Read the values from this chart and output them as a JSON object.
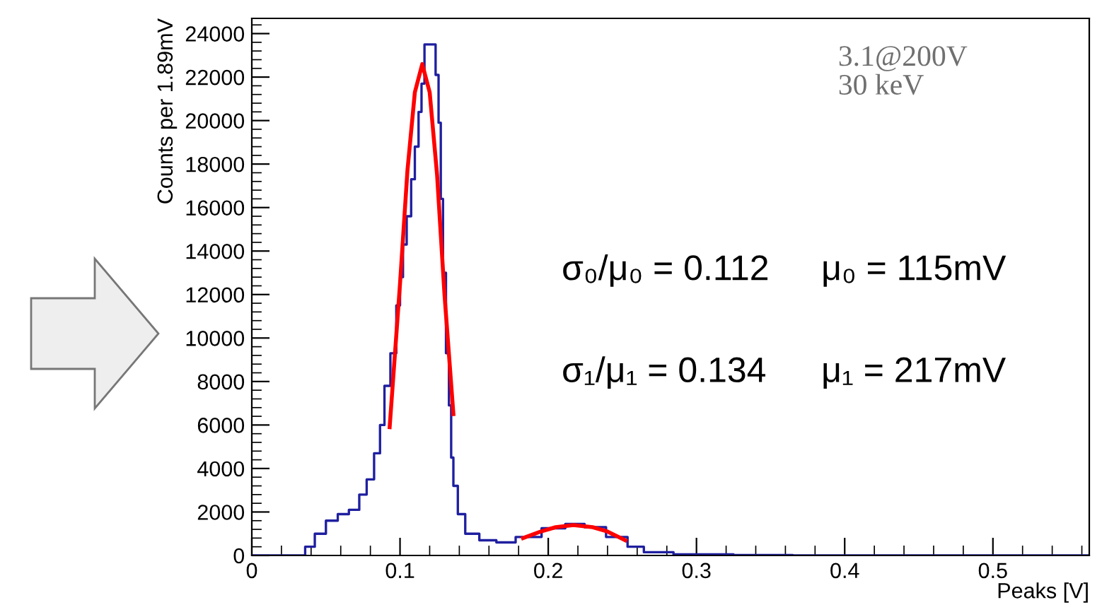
{
  "chart_data": {
    "type": "step",
    "xlabel": "Peaks [V]",
    "ylabel": "Counts per 1.89mV",
    "xlim": [
      0,
      0.565
    ],
    "ylim": [
      0,
      24700
    ],
    "xticks": [
      0,
      0.1,
      0.2,
      0.3,
      0.4,
      0.5
    ],
    "yticks": [
      0,
      2000,
      4000,
      6000,
      8000,
      10000,
      12000,
      14000,
      16000,
      18000,
      20000,
      22000,
      24000
    ],
    "grid": false,
    "legend": false,
    "series": [
      {
        "color": "#1f1fa0",
        "x": [
          0,
          0.032,
          0.04,
          0.045,
          0.055,
          0.061,
          0.07,
          0.075,
          0.08,
          0.085,
          0.088,
          0.091,
          0.096,
          0.099,
          0.101,
          0.103,
          0.106,
          0.109,
          0.111,
          0.114,
          0.115,
          0.118,
          0.123,
          0.125,
          0.127,
          0.128,
          0.13,
          0.132,
          0.134,
          0.135,
          0.137,
          0.141,
          0.147,
          0.16,
          0.17,
          0.186,
          0.205,
          0.218,
          0.231,
          0.247,
          0.26,
          0.269,
          0.3,
          0.35,
          0.38,
          0.565
        ],
        "values": [
          0,
          0,
          400,
          1000,
          1600,
          1900,
          2100,
          2800,
          3500,
          4700,
          6000,
          7800,
          9300,
          11500,
          12800,
          14300,
          15600,
          17300,
          18800,
          20400,
          21700,
          23500,
          23500,
          22100,
          19900,
          16400,
          13000,
          9300,
          6900,
          4500,
          3200,
          1900,
          1000,
          700,
          600,
          850,
          1250,
          1450,
          1300,
          850,
          400,
          150,
          50,
          20,
          0,
          0
        ]
      },
      {
        "type": "line",
        "color": "#ff0000",
        "x": [
          0.093,
          0.1,
          0.105,
          0.11,
          0.115,
          0.12,
          0.125,
          0.13,
          0.136
        ],
        "values": [
          5900,
          12500,
          17700,
          21300,
          22600,
          21300,
          17500,
          12000,
          6500
        ]
      },
      {
        "type": "line",
        "color": "#ff0000",
        "x": [
          0.183,
          0.195,
          0.205,
          0.217,
          0.23,
          0.24,
          0.252
        ],
        "values": [
          800,
          1100,
          1300,
          1400,
          1300,
          1100,
          700
        ]
      }
    ],
    "annotations": [
      "3.1@200V\n30 keV",
      "σ₀/μ₀ = 0.112",
      "μ₀ = 115mV",
      "σ₁/μ₁ = 0.134",
      "μ₁ = 217mV"
    ]
  }
}
